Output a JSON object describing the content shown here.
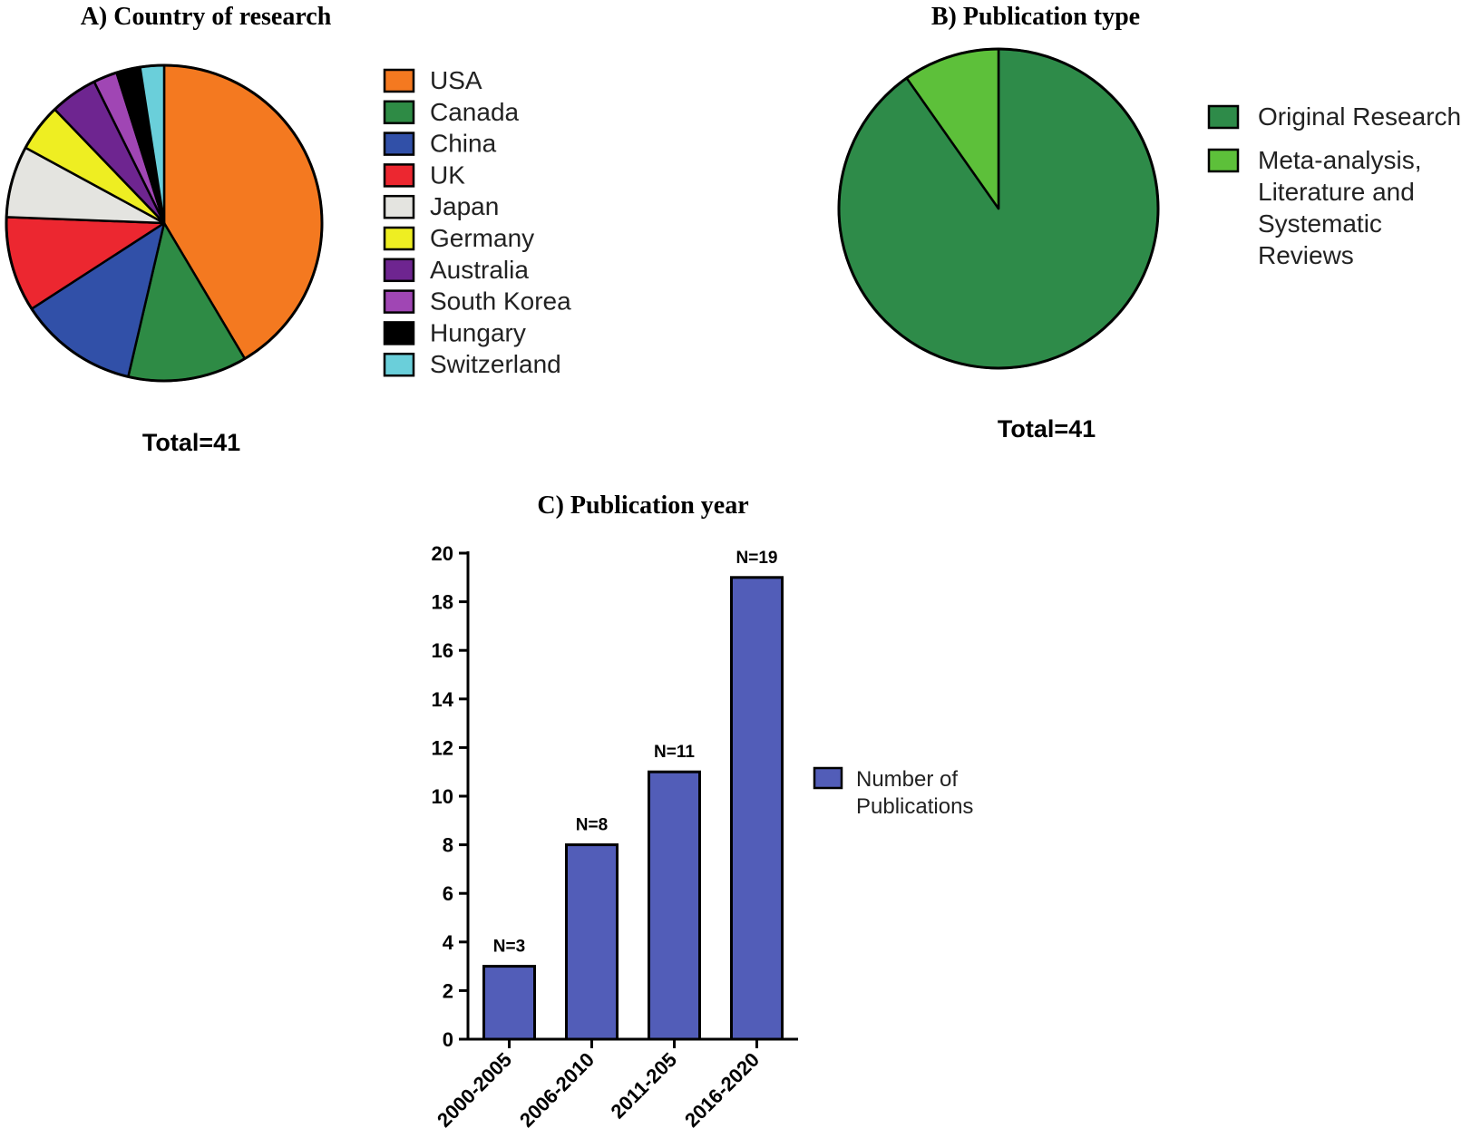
{
  "chart_data": [
    {
      "type": "pie",
      "title": "A) Country of research",
      "total_label": "Total=41",
      "slices": [
        {
          "label": "USA",
          "value": 17,
          "color": "#F47920"
        },
        {
          "label": "Canada",
          "value": 5,
          "color": "#2E8B45"
        },
        {
          "label": "China",
          "value": 5,
          "color": "#3150A8"
        },
        {
          "label": "UK",
          "value": 4,
          "color": "#EC2730"
        },
        {
          "label": "Japan",
          "value": 3,
          "color": "#E4E4E0"
        },
        {
          "label": "Germany",
          "value": 2,
          "color": "#EEEE22"
        },
        {
          "label": "Australia",
          "value": 2,
          "color": "#6E2590"
        },
        {
          "label": "South Korea",
          "value": 1,
          "color": "#A046B4"
        },
        {
          "label": "Hungary",
          "value": 1,
          "color": "#000000"
        },
        {
          "label": "Switzerland",
          "value": 1,
          "color": "#6ACFDA"
        }
      ],
      "legend_position": "right"
    },
    {
      "type": "pie",
      "title": "B) Publication type",
      "total_label": "Total=41",
      "slices": [
        {
          "label": "Original Research",
          "value": 37,
          "color": "#2E8B49"
        },
        {
          "label": "Meta-analysis, Literature and Systematic Reviews",
          "label_lines": [
            "Meta-analysis,",
            "Literature and",
            "Systematic",
            "Reviews"
          ],
          "value": 4,
          "color": "#5DC03A"
        }
      ],
      "legend_position": "right"
    },
    {
      "type": "bar",
      "title": "C) Publication year",
      "categories": [
        "2000-2005",
        "2006-2010",
        "2011-205",
        "2016-2020"
      ],
      "series": [
        {
          "name": "Number of Publications",
          "legend_lines": [
            "Number of",
            "Publications"
          ],
          "values": [
            3,
            8,
            11,
            19
          ],
          "color": "#525DB8"
        }
      ],
      "data_labels": [
        "N=3",
        "N=8",
        "N=11",
        "N=19"
      ],
      "y_ticks": [
        0,
        2,
        4,
        6,
        8,
        10,
        12,
        14,
        16,
        18,
        20
      ],
      "ylim": [
        0,
        20
      ],
      "xlabel": "",
      "ylabel": "",
      "legend_position": "right"
    }
  ]
}
